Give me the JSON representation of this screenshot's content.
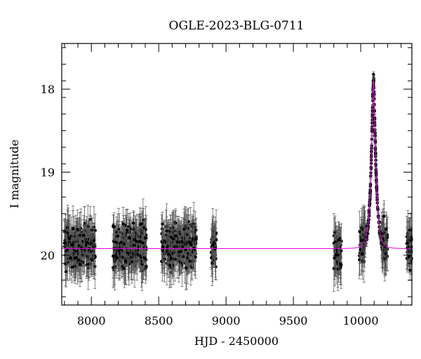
{
  "chart_data": {
    "type": "scatter",
    "title": "OGLE-2023-BLG-0711",
    "xlabel": "HJD - 2450000",
    "ylabel": "I magnitude",
    "xlim": [
      7780,
      10380
    ],
    "ylim": [
      20.6,
      17.45
    ],
    "y_inverted": true,
    "xticks": [
      {
        "value": 8000,
        "label": "8000"
      },
      {
        "value": 8500,
        "label": "8500"
      },
      {
        "value": 9000,
        "label": "9000"
      },
      {
        "value": 9500,
        "label": "9500"
      },
      {
        "value": 10000,
        "label": "10000"
      }
    ],
    "yticks": [
      {
        "value": 18,
        "label": "18"
      },
      {
        "value": 19,
        "label": "19"
      },
      {
        "value": 20,
        "label": "20"
      }
    ],
    "grid": false,
    "colors": {
      "points": "#000000",
      "model": "#e000e0"
    },
    "observing_seasons": [
      {
        "x_start": 7800,
        "x_end": 8030,
        "mean_mag": 19.9
      },
      {
        "x_start": 8160,
        "x_end": 8410,
        "mean_mag": 19.9
      },
      {
        "x_start": 8520,
        "x_end": 8780,
        "mean_mag": 19.9
      },
      {
        "x_start": 8890,
        "x_end": 8930,
        "mean_mag": 19.9
      },
      {
        "x_start": 9800,
        "x_end": 9860,
        "mean_mag": 19.95
      },
      {
        "x_start": 9990,
        "x_end": 10200,
        "mean_mag": 19.9
      },
      {
        "x_start": 10340,
        "x_end": 10380,
        "mean_mag": 19.9
      }
    ],
    "event": {
      "peak_time": 10095,
      "peak_mag": 17.9,
      "baseline_mag": 19.92
    },
    "series": [
      {
        "type": "scatter-errorbars"
      },
      {
        "type": "line"
      }
    ]
  }
}
